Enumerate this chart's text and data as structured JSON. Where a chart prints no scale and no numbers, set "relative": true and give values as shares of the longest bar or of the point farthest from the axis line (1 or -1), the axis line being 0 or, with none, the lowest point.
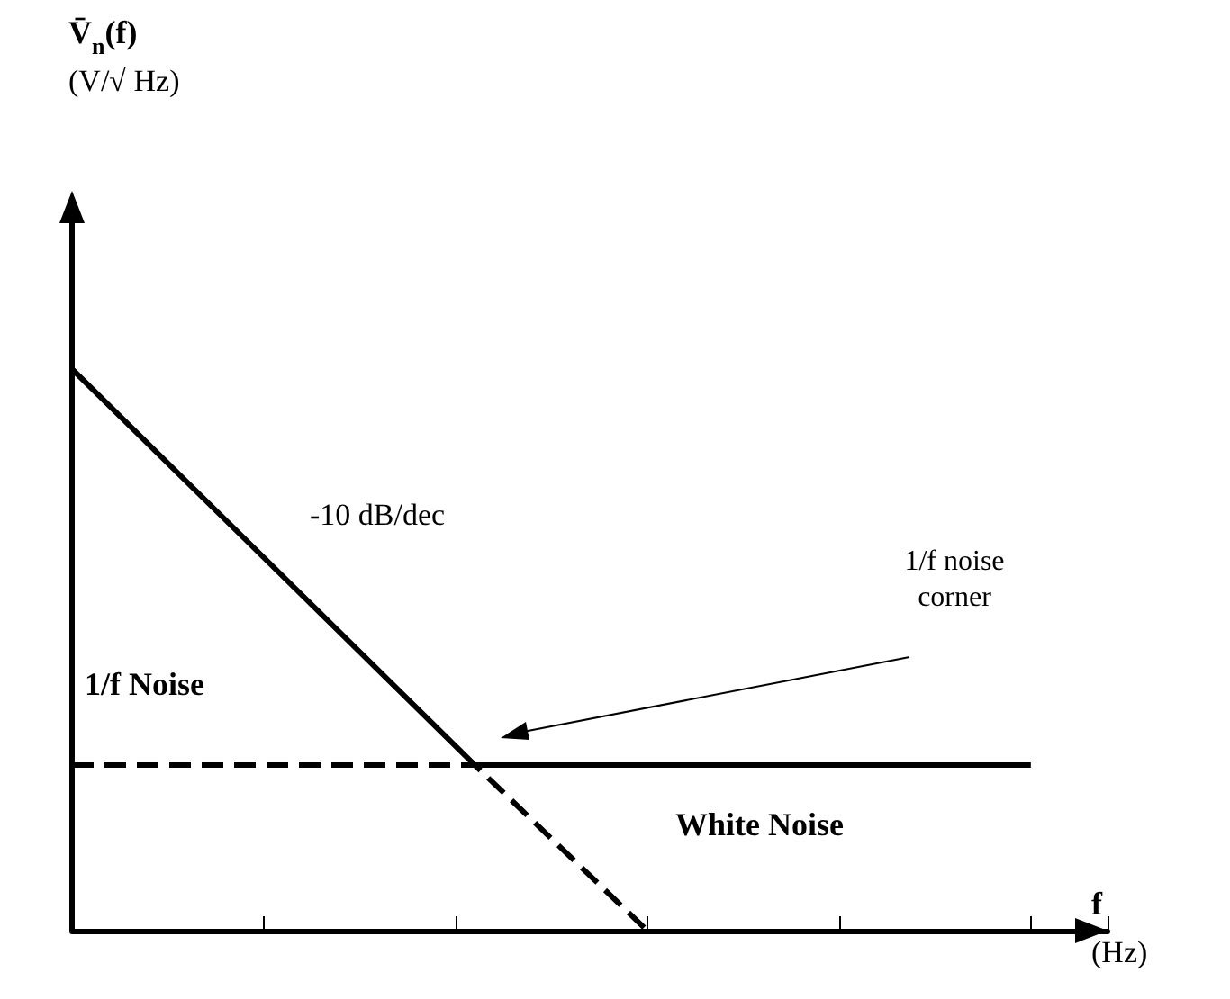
{
  "chart_data": {
    "type": "line",
    "relative": true,
    "xlabel": "f\n(Hz)",
    "categories": [
      null,
      null,
      null,
      null,
      null,
      null,
      null,
      null,
      null,
      null,
      null,
      null,
      null,
      null,
      null,
      null,
      null,
      null,
      null,
      null,
      null,
      null,
      null,
      null,
      null,
      null,
      null,
      null,
      null,
      null,
      null,
      null,
      null,
      null,
      null,
      null,
      null,
      null,
      null,
      null,
      null,
      null,
      null,
      null,
      null,
      null,
      null,
      null,
      null,
      null,
      null,
      null,
      null,
      null,
      null
    ],
    "annotations": [
      "V̄$_{n}$(f)\n(V/√ Hz)",
      "-10 dB/dec",
      "1/f noise\ncorner",
      "1/f Noise",
      "White Noise"
    ],
    "grid": false,
    "marker": "none",
    "series": [
      {
        "color": "#000000",
        "line_style": "solid",
        "values": [
          1,
          null,
          null,
          null,
          null,
          null,
          null,
          null,
          null,
          null,
          null,
          null,
          null,
          null,
          null,
          null,
          null,
          null,
          null,
          null,
          null,
          0.295,
          null,
          null,
          null,
          null,
          null,
          null,
          null,
          null,
          null,
          null,
          null,
          null,
          null,
          null,
          null,
          null,
          null,
          null,
          null,
          null,
          null,
          null,
          null,
          null,
          null,
          null,
          null,
          null,
          0.295,
          null,
          null,
          null,
          null
        ]
      },
      {
        "color": "#000000",
        "line_style": "dashed",
        "values": [
          0.295,
          null,
          null,
          null,
          null,
          null,
          null,
          null,
          null,
          null,
          null,
          null,
          null,
          null,
          null,
          null,
          null,
          null,
          null,
          null,
          null,
          0.295,
          null,
          null,
          null,
          null,
          null,
          null,
          null,
          null,
          0,
          null,
          null,
          null,
          null,
          null,
          null,
          null,
          null,
          null,
          null,
          null,
          null,
          null,
          null,
          null,
          null,
          null,
          null,
          null,
          null,
          null,
          null,
          null,
          null
        ]
      }
    ]
  }
}
